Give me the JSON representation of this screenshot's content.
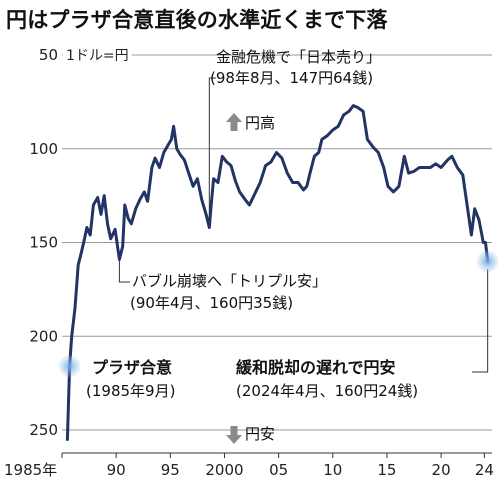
{
  "chart_data": {
    "type": "line",
    "title": "円はプラザ合意直後の水準近くまで下落",
    "unit_label": "1ドル=円",
    "ylim": [
      50,
      260
    ],
    "y_inverted": true,
    "y_ticks": [
      50,
      100,
      150,
      200,
      250
    ],
    "xlim": [
      1985.0,
      2024.7
    ],
    "x_ticks": [
      {
        "value": 1985,
        "label": "1985年"
      },
      {
        "value": 1990,
        "label": "90"
      },
      {
        "value": 1995,
        "label": "95"
      },
      {
        "value": 2000,
        "label": "2000"
      },
      {
        "value": 2005,
        "label": "05"
      },
      {
        "value": 2010,
        "label": "10"
      },
      {
        "value": 2015,
        "label": "15"
      },
      {
        "value": 2020,
        "label": "20"
      },
      {
        "value": 2024,
        "label": "24"
      }
    ],
    "grid": true,
    "color": "#223366",
    "x": [
      1985.5,
      1985.7,
      1985.9,
      1986.2,
      1986.5,
      1986.8,
      1987.0,
      1987.3,
      1987.6,
      1987.9,
      1988.3,
      1988.6,
      1988.9,
      1989.2,
      1989.5,
      1989.9,
      1990.3,
      1990.6,
      1990.8,
      1991.1,
      1991.4,
      1991.8,
      1992.2,
      1992.6,
      1992.9,
      1993.3,
      1993.6,
      1994.0,
      1994.4,
      1994.8,
      1995.1,
      1995.3,
      1995.6,
      1995.9,
      1996.3,
      1996.7,
      1997.1,
      1997.5,
      1997.9,
      1998.3,
      1998.6,
      1998.8,
      1999.0,
      1999.4,
      1999.8,
      2000.2,
      2000.6,
      2001.0,
      2001.4,
      2001.9,
      2002.3,
      2002.8,
      2003.3,
      2003.8,
      2004.3,
      2004.8,
      2005.3,
      2005.8,
      2006.3,
      2006.8,
      2007.3,
      2007.6,
      2007.9,
      2008.3,
      2008.7,
      2009.0,
      2009.5,
      2010.0,
      2010.5,
      2011.0,
      2011.5,
      2011.9,
      2012.3,
      2012.8,
      2013.2,
      2013.7,
      2014.2,
      2014.7,
      2015.1,
      2015.6,
      2016.1,
      2016.6,
      2017.0,
      2017.5,
      2018.0,
      2018.5,
      2019.0,
      2019.5,
      2020.0,
      2020.6,
      2021.0,
      2021.5,
      2022.0,
      2022.4,
      2022.8,
      2023.1,
      2023.5,
      2023.9,
      2024.1,
      2024.3
    ],
    "values": [
      255,
      216,
      200,
      185,
      162,
      155,
      150,
      142,
      146,
      130,
      126,
      135,
      125,
      140,
      148,
      143,
      159,
      152,
      130,
      137,
      140,
      132,
      127,
      123,
      128,
      110,
      105,
      110,
      102,
      98,
      95,
      88,
      100,
      103,
      106,
      113,
      120,
      116,
      127,
      135,
      142,
      128,
      116,
      118,
      104,
      107,
      109,
      117,
      123,
      127,
      130,
      124,
      118,
      109,
      107,
      102,
      105,
      113,
      118,
      118,
      122,
      120,
      113,
      104,
      102,
      95,
      93,
      90,
      88,
      82,
      80,
      77,
      78,
      80,
      95,
      99,
      102,
      110,
      120,
      123,
      120,
      104,
      113,
      112,
      110,
      110,
      110,
      108,
      110,
      106,
      104,
      110,
      114,
      130,
      146,
      132,
      138,
      150,
      150,
      160
    ],
    "annotations": [
      {
        "lines": [
          "金融危機で「日本売り」",
          "(98年8月、147円64銭)"
        ]
      },
      {
        "lines": [
          "バブル崩壊へ「トリプル安」",
          "(90年4月、160円35銭)"
        ]
      },
      {
        "lines": [
          "プラザ合意",
          "(1985年9月)"
        ]
      },
      {
        "lines": [
          "緩和脱却の遅れで円安",
          "(2024年4月、160円24銭)"
        ]
      }
    ],
    "legend_up": "円高",
    "legend_down": "円安"
  }
}
